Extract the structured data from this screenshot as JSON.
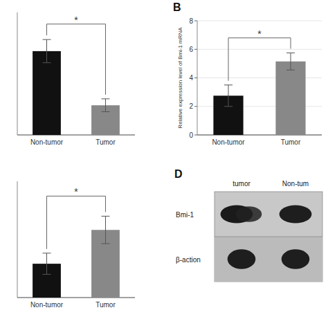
{
  "chart_data": [
    {
      "type": "bar",
      "categories": [
        "Non-tumor",
        "Tumor"
      ],
      "values": [
        6.5,
        2.3
      ],
      "errors": [
        0.9,
        0.5
      ],
      "colors": [
        "#111111",
        "#888888"
      ],
      "ylim": [
        0,
        9.5
      ],
      "yticks": [],
      "tick_labels": "x",
      "annotations": [
        {
          "text": "*",
          "y": 8.6
        }
      ]
    },
    {
      "type": "bar",
      "title": "B",
      "categories": [
        "Non-tumor",
        "Tumor"
      ],
      "values": [
        2.75,
        5.15
      ],
      "errors": [
        0.75,
        0.6
      ],
      "colors": [
        "#111111",
        "#888888"
      ],
      "y_label": "Relative expression level of Bmi-1 mRNA",
      "ylim": [
        0,
        8
      ],
      "yticks": [
        0,
        2,
        4,
        6,
        8
      ],
      "annotations": [
        {
          "text": "*",
          "y": 6.8
        }
      ]
    },
    {
      "type": "bar",
      "categories": [
        "Non-tumor",
        "Tumor"
      ],
      "values": [
        1.6,
        3.2
      ],
      "errors": [
        0.5,
        0.65
      ],
      "colors": [
        "#111111",
        "#888888"
      ],
      "ylim": [
        0,
        5.5
      ],
      "yticks": [],
      "tick_labels": "x",
      "annotations": [
        {
          "text": "*",
          "y": 4.8
        }
      ]
    },
    {
      "type": "blot",
      "title": "D",
      "categories": [
        "tumor",
        "Non-tum"
      ],
      "rows": [
        "Bmi-1",
        "β-action"
      ]
    }
  ]
}
